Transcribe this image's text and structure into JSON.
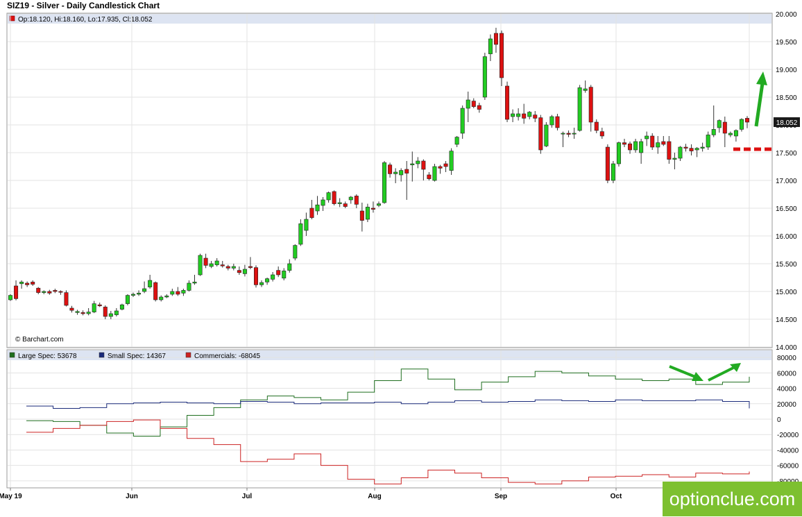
{
  "title": "SIZ19 - Silver - Daily Candlestick Chart",
  "ohlc_info": "Op:18.120, Hi:18.160, Lo:17.935, Cl:18.052",
  "credit": "© Barchart.com",
  "watermark": "optionclue.com",
  "colors": {
    "up": "#22cc22",
    "down": "#dd1111",
    "large_spec": "#1e6e1e",
    "small_spec": "#1a2a7a",
    "commercials": "#cc2222",
    "annotation": "#22aa22",
    "support": "#dd1111",
    "last_price_bg": "#1a1a1a"
  },
  "chart_data": [
    {
      "type": "candlestick",
      "title": "SIZ19 - Silver - Daily Candlestick Chart",
      "x_tick_labels": [
        "May 19",
        "Jun",
        "Jul",
        "Aug",
        "Sep",
        "Oct"
      ],
      "y_tick_labels": [
        "14.000",
        "14.500",
        "15.000",
        "15.500",
        "16.000",
        "16.500",
        "17.000",
        "17.500",
        "18.000",
        "18.500",
        "19.000",
        "19.500",
        "20.000"
      ],
      "ylim": [
        14.0,
        20.0
      ],
      "last_price": "18.052",
      "ohlc": [
        [
          14.85,
          14.95,
          14.83,
          14.93
        ],
        [
          15.1,
          15.2,
          14.84,
          14.87
        ],
        [
          15.14,
          15.2,
          15.05,
          15.17
        ],
        [
          15.15,
          15.18,
          15.08,
          15.12
        ],
        [
          15.17,
          15.2,
          15.1,
          15.13
        ],
        [
          15.06,
          15.08,
          14.95,
          14.98
        ],
        [
          14.98,
          15.02,
          14.95,
          15
        ],
        [
          15,
          15.03,
          14.94,
          14.97
        ],
        [
          15.02,
          15.05,
          14.97,
          15.0
        ],
        [
          15,
          15.02,
          14.94,
          14.99
        ],
        [
          14.98,
          15.02,
          14.73,
          14.75
        ],
        [
          14.7,
          14.74,
          14.62,
          14.66
        ],
        [
          14.62,
          14.67,
          14.58,
          14.64
        ],
        [
          14.62,
          14.66,
          14.57,
          14.6
        ],
        [
          14.6,
          14.7,
          14.57,
          14.63
        ],
        [
          14.63,
          14.83,
          14.61,
          14.78
        ],
        [
          14.76,
          14.8,
          14.72,
          14.74
        ],
        [
          14.72,
          14.75,
          14.5,
          14.55
        ],
        [
          14.55,
          14.65,
          14.5,
          14.6
        ],
        [
          14.58,
          14.7,
          14.55,
          14.65
        ],
        [
          14.68,
          14.78,
          14.66,
          14.76
        ],
        [
          14.78,
          14.95,
          14.75,
          14.93
        ],
        [
          14.93,
          14.98,
          14.9,
          14.95
        ],
        [
          14.95,
          15.02,
          14.92,
          14.97
        ],
        [
          15.0,
          15.18,
          14.97,
          15.05
        ],
        [
          15.08,
          15.3,
          15.05,
          15.2
        ],
        [
          15.16,
          15.18,
          14.82,
          14.85
        ],
        [
          14.85,
          14.93,
          14.82,
          14.9
        ],
        [
          14.9,
          14.95,
          14.88,
          14.92
        ],
        [
          14.95,
          15.05,
          14.92,
          15.0
        ],
        [
          15.0,
          15.08,
          14.92,
          14.95
        ],
        [
          14.97,
          15.05,
          14.92,
          15.02
        ],
        [
          15.02,
          15.2,
          15.0,
          15.15
        ],
        [
          15.15,
          15.3,
          15.12,
          15.17
        ],
        [
          15.3,
          15.68,
          15.28,
          15.65
        ],
        [
          15.6,
          15.68,
          15.42,
          15.47
        ],
        [
          15.45,
          15.55,
          15.42,
          15.5
        ],
        [
          15.48,
          15.6,
          15.45,
          15.55
        ],
        [
          15.48,
          15.55,
          15.43,
          15.46
        ],
        [
          15.45,
          15.48,
          15.38,
          15.42
        ],
        [
          15.42,
          15.5,
          15.38,
          15.45
        ],
        [
          15.38,
          15.45,
          15.3,
          15.34
        ],
        [
          15.32,
          15.48,
          15.27,
          15.4
        ],
        [
          15.45,
          15.62,
          15.4,
          15.43
        ],
        [
          15.43,
          15.47,
          15.07,
          15.12
        ],
        [
          15.12,
          15.2,
          15.08,
          15.16
        ],
        [
          15.17,
          15.25,
          15.12,
          15.23
        ],
        [
          15.22,
          15.35,
          15.18,
          15.3
        ],
        [
          15.38,
          15.45,
          15.26,
          15.3
        ],
        [
          15.24,
          15.42,
          15.2,
          15.37
        ],
        [
          15.38,
          15.58,
          15.34,
          15.5
        ],
        [
          15.6,
          15.85,
          15.56,
          15.83
        ],
        [
          15.85,
          16.3,
          15.82,
          16.22
        ],
        [
          16.1,
          16.42,
          16.0,
          16.3
        ],
        [
          16.5,
          16.65,
          16.3,
          16.33
        ],
        [
          16.45,
          16.72,
          16.38,
          16.56
        ],
        [
          16.55,
          16.7,
          16.45,
          16.65
        ],
        [
          16.65,
          16.8,
          16.6,
          16.78
        ],
        [
          16.8,
          16.82,
          16.55,
          16.58
        ],
        [
          16.58,
          16.68,
          16.52,
          16.6
        ],
        [
          16.58,
          16.62,
          16.5,
          16.53
        ],
        [
          16.65,
          16.72,
          16.58,
          16.7
        ],
        [
          16.72,
          16.75,
          16.5,
          16.57
        ],
        [
          16.45,
          16.6,
          16.08,
          16.28
        ],
        [
          16.3,
          16.58,
          16.25,
          16.52
        ],
        [
          16.5,
          16.62,
          16.42,
          16.48
        ],
        [
          16.55,
          16.62,
          16.52,
          16.58
        ],
        [
          16.6,
          17.35,
          16.58,
          17.32
        ],
        [
          17.28,
          17.32,
          17.05,
          17.12
        ],
        [
          17.12,
          17.22,
          16.95,
          17.15
        ],
        [
          17.1,
          17.22,
          16.98,
          17.18
        ],
        [
          17.2,
          17.35,
          16.65,
          17.13
        ],
        [
          17.28,
          17.52,
          16.98,
          17.3
        ],
        [
          17.3,
          17.42,
          17.22,
          17.35
        ],
        [
          17.35,
          17.38,
          17.0,
          17.2
        ],
        [
          17.1,
          17.15,
          17.0,
          17.03
        ],
        [
          17.0,
          17.3,
          16.98,
          17.25
        ],
        [
          17.25,
          17.28,
          17.12,
          17.22
        ],
        [
          17.3,
          17.35,
          17.15,
          17.25
        ],
        [
          17.18,
          17.58,
          17.1,
          17.53
        ],
        [
          17.65,
          17.8,
          17.6,
          17.78
        ],
        [
          17.85,
          18.35,
          17.75,
          18.3
        ],
        [
          18.3,
          18.6,
          18.05,
          18.45
        ],
        [
          18.43,
          18.48,
          18.3,
          18.33
        ],
        [
          18.35,
          18.4,
          18.22,
          18.28
        ],
        [
          18.5,
          19.3,
          18.45,
          19.23
        ],
        [
          19.28,
          19.63,
          19.15,
          19.55
        ],
        [
          19.65,
          19.75,
          19.3,
          19.45
        ],
        [
          19.65,
          19.7,
          18.7,
          18.85
        ],
        [
          18.7,
          18.78,
          18.05,
          18.1
        ],
        [
          18.15,
          18.28,
          18.05,
          18.2
        ],
        [
          18.15,
          18.3,
          18.08,
          18.2
        ],
        [
          18.2,
          18.38,
          18.02,
          18.12
        ],
        [
          18.15,
          18.25,
          18.1,
          18.23
        ],
        [
          18.18,
          18.25,
          18.05,
          18.12
        ],
        [
          18.13,
          18.18,
          17.48,
          17.55
        ],
        [
          17.62,
          18.05,
          17.6,
          18.0
        ],
        [
          18.0,
          18.18,
          17.95,
          18.15
        ],
        [
          18.15,
          18.2,
          17.9,
          17.95
        ],
        [
          17.85,
          17.88,
          17.6,
          17.85
        ],
        [
          17.85,
          17.9,
          17.78,
          17.83
        ],
        [
          17.85,
          17.95,
          17.75,
          17.85
        ],
        [
          17.9,
          18.72,
          17.88,
          18.67
        ],
        [
          18.62,
          18.8,
          18.58,
          18.65
        ],
        [
          18.68,
          18.72,
          17.88,
          18.05
        ],
        [
          18.05,
          18.1,
          17.85,
          17.9
        ],
        [
          17.88,
          17.95,
          17.75,
          17.8
        ],
        [
          17.6,
          17.65,
          16.95,
          17.0
        ],
        [
          17.0,
          17.35,
          16.95,
          17.3
        ],
        [
          17.3,
          17.7,
          17.25,
          17.68
        ],
        [
          17.68,
          17.75,
          17.6,
          17.65
        ],
        [
          17.66,
          17.7,
          17.48,
          17.55
        ],
        [
          17.55,
          17.75,
          17.5,
          17.7
        ],
        [
          17.5,
          17.75,
          17.3,
          17.7
        ],
        [
          17.75,
          17.88,
          17.62,
          17.8
        ],
        [
          17.8,
          17.85,
          17.55,
          17.6
        ],
        [
          17.6,
          17.8,
          17.48,
          17.68
        ],
        [
          17.7,
          17.8,
          17.62,
          17.65
        ],
        [
          17.7,
          17.8,
          17.3,
          17.38
        ],
        [
          17.38,
          17.5,
          17.2,
          17.4
        ],
        [
          17.4,
          17.62,
          17.35,
          17.6
        ],
        [
          17.6,
          17.66,
          17.52,
          17.58
        ],
        [
          17.58,
          17.65,
          17.45,
          17.53
        ],
        [
          17.55,
          17.6,
          17.42,
          17.58
        ],
        [
          17.58,
          17.68,
          17.52,
          17.6
        ],
        [
          17.6,
          17.88,
          17.55,
          17.82
        ],
        [
          17.82,
          18.35,
          17.78,
          17.92
        ],
        [
          17.95,
          18.1,
          17.86,
          18.08
        ],
        [
          18.05,
          18.15,
          17.6,
          17.85
        ],
        [
          17.82,
          17.88,
          17.78,
          17.85
        ],
        [
          17.8,
          17.92,
          17.7,
          17.9
        ],
        [
          17.92,
          18.12,
          17.88,
          18.1
        ],
        [
          18.12,
          18.16,
          17.94,
          18.05
        ]
      ],
      "annotations": [
        "green arrow up",
        "red dashed support line"
      ]
    },
    {
      "type": "line",
      "y_tick_labels": [
        "-80000",
        "-60000",
        "-40000",
        "-20000",
        "0",
        "20000",
        "40000",
        "60000",
        "80000"
      ],
      "ylim": [
        -90000,
        90000
      ],
      "series": [
        {
          "name": "Large Spec",
          "legend": "Large Spec: 53678",
          "values": [
            -2000,
            -3000,
            -8000,
            -18000,
            -22000,
            -10000,
            5000,
            15000,
            25000,
            30000,
            28000,
            25000,
            35000,
            50000,
            65000,
            52000,
            38000,
            48000,
            55000,
            62000,
            60000,
            56000,
            52000,
            50000,
            52000,
            45000,
            48000,
            55000
          ]
        },
        {
          "name": "Small Spec",
          "legend": "Small Spec: 14367",
          "values": [
            17000,
            14000,
            15000,
            20000,
            21000,
            22000,
            21000,
            20000,
            23000,
            22000,
            20000,
            21000,
            21000,
            22000,
            20000,
            22000,
            24000,
            22000,
            23000,
            25000,
            24000,
            23000,
            25000,
            24000,
            24000,
            25000,
            23000,
            14000
          ]
        },
        {
          "name": "Commercials",
          "legend": "Commercials: -68045",
          "values": [
            -17000,
            -12000,
            -8000,
            -3000,
            -1000,
            -12000,
            -25000,
            -33000,
            -55000,
            -52000,
            -45000,
            -60000,
            -78000,
            -84000,
            -76000,
            -66000,
            -70000,
            -76000,
            -82000,
            -84000,
            -80000,
            -75000,
            -74000,
            -72000,
            -75000,
            -70000,
            -71000,
            -68000
          ]
        }
      ]
    }
  ]
}
